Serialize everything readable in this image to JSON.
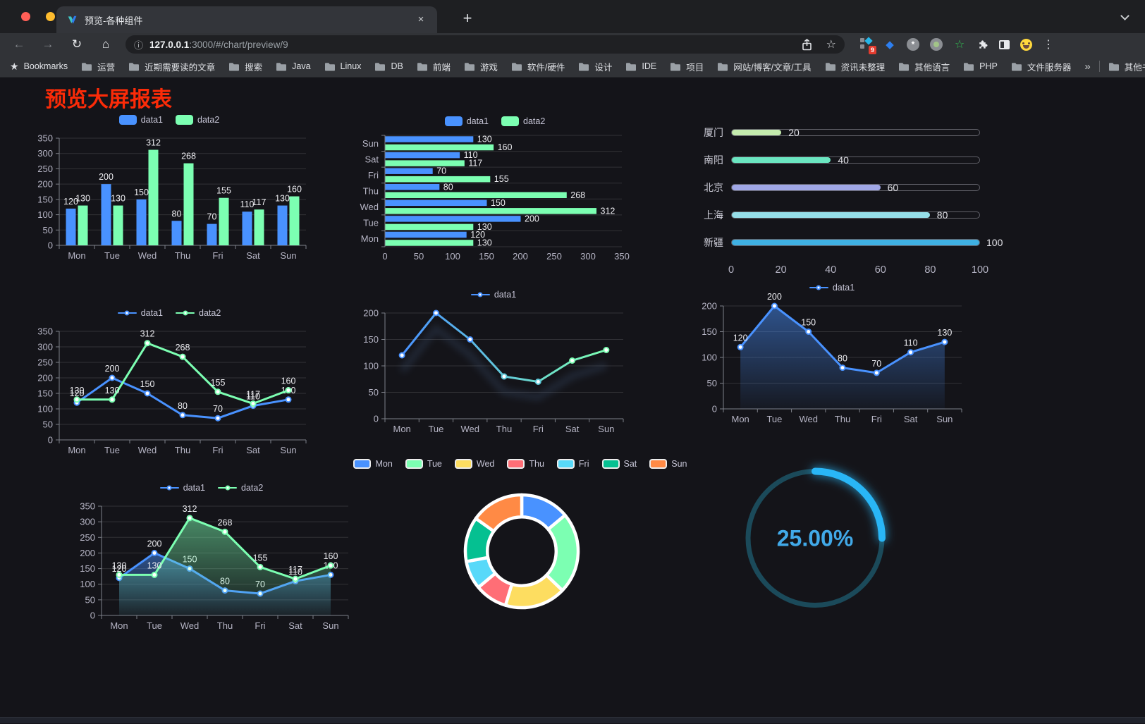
{
  "window": {
    "tab_title": "预览-各种组件",
    "url_host": "127.0.0.1",
    "url_rest": ":3000/#/chart/preview/9",
    "new_tab_label": "+",
    "close_label": "×",
    "extension_badge": "9"
  },
  "toolbar_icons": {
    "back": "←",
    "forward": "→",
    "reload": "↻",
    "home": "⌂",
    "info": "ⓘ",
    "star": "☆",
    "gem": "◆",
    "green_star": "☆",
    "menu": "⋮"
  },
  "bookmarks": {
    "label": "Bookmarks",
    "star": "★",
    "items": [
      "运营",
      "近期需要读的文章",
      "搜索",
      "Java",
      "Linux",
      "DB",
      "前端",
      "游戏",
      "软件/硬件",
      "设计",
      "IDE",
      "项目",
      "网站/博客/文章/工具",
      "资讯未整理",
      "其他语言",
      "PHP",
      "文件服务器"
    ],
    "overflow": "»",
    "other": "其他书签"
  },
  "page": {
    "title": "预览大屏报表",
    "title_color": "#fb2b08",
    "background": "#141419"
  },
  "chart_data": [
    {
      "id": "bar-vertical",
      "type": "bar",
      "categories": [
        "Mon",
        "Tue",
        "Wed",
        "Thu",
        "Fri",
        "Sat",
        "Sun"
      ],
      "series": [
        {
          "name": "data1",
          "color": "#4992ff",
          "values": [
            120,
            200,
            150,
            80,
            70,
            110,
            130
          ]
        },
        {
          "name": "data2",
          "color": "#7cffb2",
          "values": [
            130,
            130,
            312,
            268,
            155,
            117,
            160
          ]
        }
      ],
      "ylim": [
        0,
        350
      ],
      "ytick_step": 50,
      "grid": true,
      "data_labels": true,
      "legend_position": "top"
    },
    {
      "id": "bar-horizontal",
      "type": "hbar",
      "categories": [
        "Mon",
        "Tue",
        "Wed",
        "Thu",
        "Fri",
        "Sat",
        "Sun"
      ],
      "display_top_to_bottom": [
        "Sun",
        "Sat",
        "Fri",
        "Thu",
        "Wed",
        "Tue",
        "Mon"
      ],
      "series": [
        {
          "name": "data1",
          "color": "#4992ff",
          "values": [
            120,
            200,
            150,
            80,
            70,
            110,
            130
          ]
        },
        {
          "name": "data2",
          "color": "#7cffb2",
          "values": [
            130,
            130,
            312,
            268,
            155,
            117,
            160
          ]
        }
      ],
      "xlim": [
        0,
        350
      ],
      "xtick_step": 50,
      "grid": true,
      "data_labels": true,
      "legend_position": "top"
    },
    {
      "id": "progress-bars",
      "type": "bar",
      "subtype": "progress",
      "items": [
        {
          "label": "厦门",
          "value": 20,
          "color": "#c4ebad"
        },
        {
          "label": "南阳",
          "value": 40,
          "color": "#6be6c1"
        },
        {
          "label": "北京",
          "value": 60,
          "color": "#a0a7e6"
        },
        {
          "label": "上海",
          "value": 80,
          "color": "#96dee8"
        },
        {
          "label": "新疆",
          "value": 100,
          "color": "#3fb1e3"
        }
      ],
      "xlim": [
        0,
        100
      ],
      "xtick_step": 20
    },
    {
      "id": "line-two-series",
      "type": "line",
      "categories": [
        "Mon",
        "Tue",
        "Wed",
        "Thu",
        "Fri",
        "Sat",
        "Sun"
      ],
      "series": [
        {
          "name": "data1",
          "color": "#4992ff",
          "values": [
            120,
            200,
            150,
            80,
            70,
            110,
            130
          ]
        },
        {
          "name": "data2",
          "color": "#7cffb2",
          "values": [
            130,
            130,
            312,
            268,
            155,
            117,
            160
          ]
        }
      ],
      "ylim": [
        0,
        350
      ],
      "ytick_step": 50,
      "markers": true,
      "data_labels": true,
      "legend_position": "top"
    },
    {
      "id": "line-gradient",
      "type": "line",
      "categories": [
        "Mon",
        "Tue",
        "Wed",
        "Thu",
        "Fri",
        "Sat",
        "Sun"
      ],
      "series": [
        {
          "name": "data1",
          "color": "#4992ff",
          "color_gradient": [
            "#4992ff",
            "#7cffb2"
          ],
          "values": [
            120,
            200,
            150,
            80,
            70,
            110,
            130
          ],
          "shadow": true
        }
      ],
      "ylim": [
        0,
        200
      ],
      "ytick_step": 50,
      "markers": true,
      "data_labels": false,
      "legend_position": "top"
    },
    {
      "id": "area-single",
      "type": "line",
      "categories": [
        "Mon",
        "Tue",
        "Wed",
        "Thu",
        "Fri",
        "Sat",
        "Sun"
      ],
      "series": [
        {
          "name": "data1",
          "color": "#4992ff",
          "values": [
            120,
            200,
            150,
            80,
            70,
            110,
            130
          ],
          "area": true
        }
      ],
      "ylim": [
        0,
        200
      ],
      "ytick_step": 50,
      "markers": true,
      "data_labels": true,
      "legend_position": "top"
    },
    {
      "id": "line-area-two",
      "type": "line",
      "categories": [
        "Mon",
        "Tue",
        "Wed",
        "Thu",
        "Fri",
        "Sat",
        "Sun"
      ],
      "series": [
        {
          "name": "data1",
          "color": "#4992ff",
          "values": [
            120,
            200,
            150,
            80,
            70,
            110,
            130
          ],
          "area": true
        },
        {
          "name": "data2",
          "color": "#7cffb2",
          "values": [
            130,
            130,
            312,
            268,
            155,
            117,
            160
          ],
          "area": true
        }
      ],
      "ylim": [
        0,
        350
      ],
      "ytick_step": 50,
      "markers": true,
      "data_labels": true,
      "legend_position": "top"
    },
    {
      "id": "donut",
      "type": "pie",
      "inner_radius_ratio": 0.61,
      "border_color": "#ffffff",
      "legend_position": "top",
      "slices": [
        {
          "label": "Mon",
          "value": 120,
          "color": "#4992ff"
        },
        {
          "label": "Tue",
          "value": 200,
          "color": "#7cffb2"
        },
        {
          "label": "Wed",
          "value": 150,
          "color": "#fddd60"
        },
        {
          "label": "Thu",
          "value": 80,
          "color": "#ff6e76"
        },
        {
          "label": "Fri",
          "value": 70,
          "color": "#58d9f9"
        },
        {
          "label": "Sat",
          "value": 110,
          "color": "#05c091"
        },
        {
          "label": "Sun",
          "value": 130,
          "color": "#ff8a45"
        }
      ]
    },
    {
      "id": "gauge",
      "type": "gauge",
      "value_percent": 25,
      "display": "25.00%",
      "arc_color": "#29b6f6",
      "track_color": "#1b4a5a",
      "text_color": "#41a9e8",
      "start": "top",
      "direction": "clockwise"
    }
  ]
}
